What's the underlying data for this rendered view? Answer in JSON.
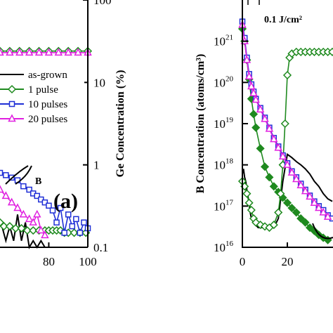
{
  "chart_data": [
    {
      "panel": "a",
      "type": "line",
      "panel_label": "(a)",
      "annotation": "B",
      "xlabel": "",
      "y2label": "Ge Concentration (%)",
      "xlim": [
        55,
        100
      ],
      "y2lim": [
        0.1,
        100
      ],
      "y2scale": "log",
      "xticks": [
        "80",
        "100"
      ],
      "y2ticks": [
        {
          "v": 100,
          "t": "100"
        },
        {
          "v": 10,
          "t": "10"
        },
        {
          "v": 1,
          "t": "1"
        },
        {
          "v": 0.1,
          "t": "0.1"
        }
      ],
      "legend": {
        "placement": "center-right"
      },
      "series": [
        {
          "name": "as-grown",
          "color": "#000000",
          "marker": "none",
          "x": [
            55,
            58,
            60,
            62,
            64,
            66,
            68,
            70,
            72,
            74,
            76,
            78
          ],
          "y": [
            0.22,
            0.12,
            0.18,
            0.12,
            0.25,
            0.12,
            0.2,
            0.1,
            0.12,
            0.1,
            0.12,
            0.1
          ]
        },
        {
          "name": "1 pulse",
          "color": "#1f8a1f",
          "marker": "diamond",
          "x": [
            55,
            57,
            60,
            63,
            66,
            69,
            72,
            75,
            78,
            80,
            82,
            84,
            86,
            88,
            90,
            93,
            96,
            99
          ],
          "y": [
            0.2,
            0.18,
            0.18,
            0.17,
            0.17,
            0.16,
            0.16,
            0.16,
            0.16,
            0.16,
            0.16,
            0.16,
            0.16,
            0.15,
            0.15,
            0.15,
            0.15,
            0.15
          ]
        },
        {
          "name": "10 pulses",
          "color": "#1f2fd6",
          "marker": "square",
          "x": [
            55,
            58,
            61,
            64,
            67,
            70,
            72,
            74,
            76,
            78,
            80,
            82,
            84,
            86,
            88,
            90,
            92,
            94,
            96,
            98,
            100
          ],
          "y": [
            0.8,
            0.75,
            0.7,
            0.65,
            0.55,
            0.5,
            0.45,
            0.42,
            0.38,
            0.35,
            0.32,
            0.28,
            0.2,
            0.3,
            0.15,
            0.25,
            0.18,
            0.22,
            0.15,
            0.2,
            0.17
          ]
        },
        {
          "name": "20 pulses",
          "color": "#e020e0",
          "marker": "triangle",
          "x": [
            55,
            58,
            61,
            64,
            67,
            70,
            72,
            74,
            76,
            78
          ],
          "y": [
            0.5,
            0.42,
            0.35,
            0.3,
            0.25,
            0.22,
            0.2,
            0.25,
            0.16,
            0.14
          ]
        },
        {
          "name": "1 pulse Ge",
          "color": "#1f8a1f",
          "marker": "diamond",
          "x": [
            55,
            60,
            65,
            70,
            75,
            80,
            85,
            90,
            95,
            100
          ],
          "y": [
            24,
            24,
            24,
            24,
            24,
            24,
            24,
            24,
            24,
            24
          ]
        },
        {
          "name": "20 pulses Ge",
          "color": "#e020e0",
          "marker": "triangle",
          "x": [
            55,
            60,
            65,
            70,
            75,
            80,
            85,
            90,
            95,
            100
          ],
          "y": [
            23,
            23,
            23,
            23,
            23,
            23,
            23,
            23,
            23,
            23
          ]
        }
      ]
    },
    {
      "panel": "b",
      "type": "line",
      "annotation": "0.1 J/cm²",
      "ylabel": "B Concentration (atoms/cm³)",
      "xlim": [
        0,
        40
      ],
      "ylim": [
        1e+16,
        1e+22
      ],
      "yscale": "log",
      "xticks": [
        "0",
        "20"
      ],
      "yticks": [
        {
          "v": 1e+16,
          "e": "16"
        },
        {
          "v": 1e+17,
          "e": "17"
        },
        {
          "v": 1e+18,
          "e": "18"
        },
        {
          "v": 1e+19,
          "e": "19"
        },
        {
          "v": 1e+20,
          "e": "20"
        },
        {
          "v": 1e+21,
          "e": "21"
        }
      ],
      "series": [
        {
          "name": "as-grown",
          "color": "#000000",
          "marker": "none",
          "x": [
            0,
            0.5,
            1,
            1.5,
            2,
            2.5,
            3,
            3.5,
            4,
            5,
            6,
            7,
            8,
            10,
            12,
            14,
            16,
            18,
            20,
            22,
            24,
            26,
            28,
            30,
            32,
            34,
            36,
            38,
            40
          ],
          "y": [
            6e+17,
            8e+17,
            5e+17,
            4e+17,
            2.5e+17,
            1.7e+17,
            1.1e+17,
            7e+16,
            5e+16,
            4e+16,
            3.5e+16,
            3e+16,
            3e+16,
            3e+16,
            3e+16,
            3e+16,
            5e+16,
            4e+17,
            1.8e+18,
            1.5e+18,
            1.2e+18,
            1e+18,
            8e+17,
            6e+17,
            4e+17,
            3e+17,
            2e+17,
            1.5e+17,
            1.3e+17
          ]
        },
        {
          "name": "1 pulse",
          "color": "#1f8a1f",
          "marker": "diamond",
          "filled": true,
          "x": [
            0,
            1,
            2,
            3,
            4,
            5,
            6,
            8,
            10,
            12,
            14,
            16,
            18,
            20,
            22,
            24,
            26,
            28,
            30,
            32,
            34,
            36,
            38
          ],
          "y": [
            2e+21,
            1e+21,
            3.5e+20,
            1.2e+20,
            4e+19,
            1.7e+19,
            8e+18,
            2.5e+18,
            9e+17,
            5e+17,
            3e+17,
            2.2e+17,
            1.6e+17,
            1.2e+17,
            9e+16,
            7e+16,
            5e+16,
            4e+16,
            3e+16,
            2.5e+16,
            2e+16,
            1.7e+16,
            1.5e+16
          ]
        },
        {
          "name": "1 pulse Ge",
          "color": "#1f8a1f",
          "marker": "diamond",
          "x": [
            0,
            1,
            2,
            3,
            4,
            5,
            6,
            8,
            10,
            12,
            14,
            16,
            17,
            18,
            19,
            20,
            21,
            22,
            24,
            26,
            28,
            30,
            32,
            34,
            36,
            38,
            40
          ],
          "y": [
            4e+17,
            3e+17,
            2e+17,
            1.2e+17,
            8e+16,
            5e+16,
            4e+16,
            3.5e+16,
            3.2e+16,
            3e+16,
            3.5e+16,
            7e+16,
            2e+17,
            1e+18,
            1e+19,
            1.5e+20,
            4e+20,
            5e+20,
            5.5e+20,
            5.5e+20,
            5.5e+20,
            5.5e+20,
            5.5e+20,
            5.5e+20,
            5.5e+20,
            5.5e+20,
            5.5e+20
          ]
        },
        {
          "name": "10 pulses",
          "color": "#1f2fd6",
          "marker": "square",
          "x": [
            0,
            1,
            2,
            3,
            4,
            5,
            6,
            8,
            10,
            12,
            14,
            16,
            18,
            20,
            22,
            24,
            26,
            28,
            30,
            32,
            34,
            36,
            38,
            40
          ],
          "y": [
            3e+21,
            1.2e+21,
            4e+20,
            1.6e+20,
            9e+19,
            6e+19,
            4e+19,
            2.4e+19,
            1.4e+19,
            8e+18,
            4.5e+18,
            2.8e+18,
            1.7e+18,
            1.1e+18,
            7e+17,
            5e+17,
            3.5e+17,
            2.5e+17,
            1.8e+17,
            1.3e+17,
            1e+17,
            8e+16,
            6e+16,
            5e+16
          ]
        },
        {
          "name": "20 pulses",
          "color": "#e020e0",
          "marker": "triangle",
          "x": [
            0,
            1,
            2,
            3,
            4,
            5,
            6,
            8,
            10,
            12,
            14,
            16,
            18,
            20,
            22,
            24,
            26,
            28,
            30,
            32,
            34,
            36,
            38
          ],
          "y": [
            2.5e+21,
            1e+21,
            3.5e+20,
            1.4e+20,
            8e+19,
            5.5e+19,
            3.8e+19,
            2.2e+19,
            1.3e+19,
            7.5e+18,
            4.2e+18,
            2.6e+18,
            1.6e+18,
            1e+18,
            6.5e+17,
            4.5e+17,
            3.2e+17,
            2.3e+17,
            1.7e+17,
            1.2e+17,
            9e+16,
            7e+16,
            5.5e+16
          ]
        }
      ]
    }
  ],
  "legend_items": [
    "as-grown",
    "1 pulse",
    "10 pulses",
    "20 pulses"
  ]
}
